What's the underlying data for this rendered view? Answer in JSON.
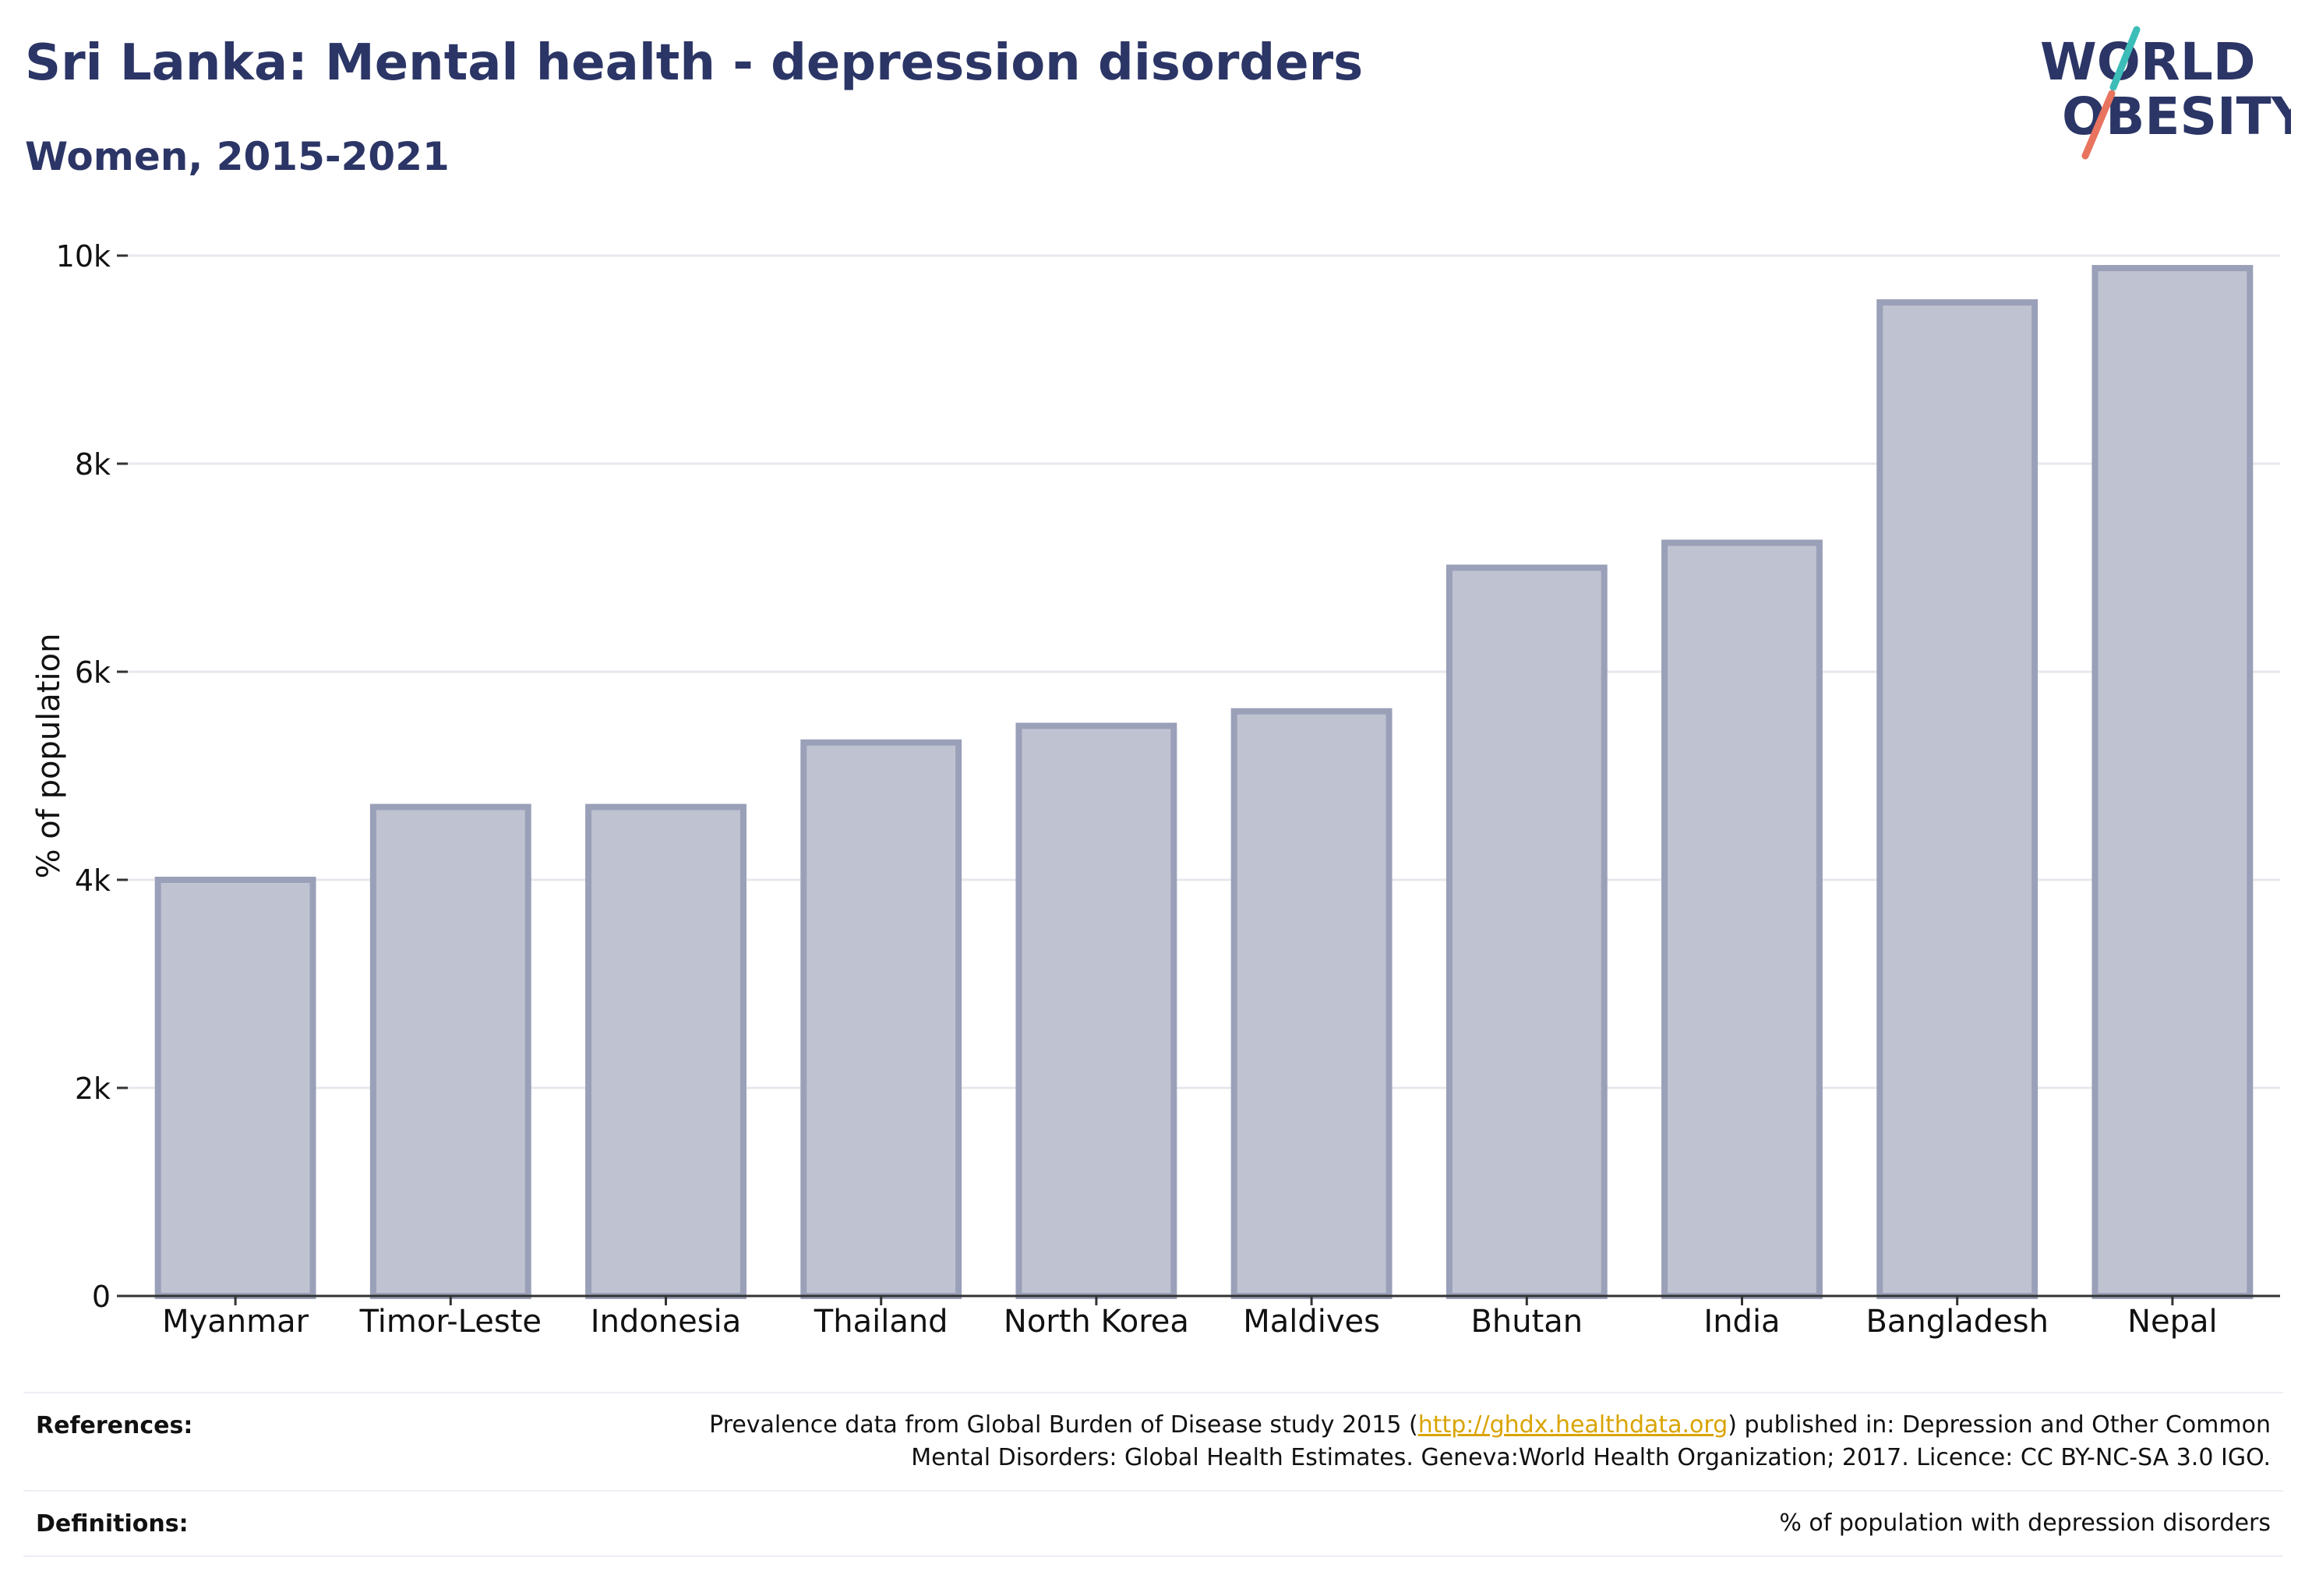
{
  "header": {
    "title": "Sri Lanka: Mental health - depression disorders",
    "subtitle": "Women, 2015-2021"
  },
  "logo": {
    "line1": "WORLD",
    "line2": "OBESITY"
  },
  "chart_data": {
    "type": "bar",
    "title": "Sri Lanka: Mental health - depression disorders",
    "subtitle": "Women, 2015-2021",
    "xlabel": "",
    "ylabel": "% of population",
    "ylim": [
      0,
      10000
    ],
    "yticks": [
      0,
      2000,
      4000,
      6000,
      8000,
      10000
    ],
    "ytick_labels": [
      "0",
      "2k",
      "4k",
      "6k",
      "8k",
      "10k"
    ],
    "grid": true,
    "categories": [
      "Myanmar",
      "Timor-Leste",
      "Indonesia",
      "Thailand",
      "North Korea",
      "Maldives",
      "Bhutan",
      "India",
      "Bangladesh",
      "Nepal"
    ],
    "values": [
      4000,
      4700,
      4700,
      5320,
      5480,
      5620,
      7000,
      7240,
      9550,
      9880
    ],
    "bar_fill": "#bfc2d0",
    "bar_stroke": "#9aa0b8"
  },
  "footer": {
    "references_label": "References:",
    "references_line1_pre": "Prevalence data from Global Burden of Disease study 2015 (",
    "references_link": "http://ghdx.healthdata.org",
    "references_line1_post": ") published in: Depression and Other Common",
    "references_line2": "Mental Disorders: Global Health Estimates. Geneva:World Health Organization; 2017. Licence: CC BY-NC-SA 3.0 IGO.",
    "definitions_label": "Definitions:",
    "definitions_text": "% of population with depression disorders"
  },
  "colors": {
    "title": "#2b3566",
    "accent_teal": "#3dbdb8",
    "accent_coral": "#e8735f",
    "link": "#d9a400"
  }
}
